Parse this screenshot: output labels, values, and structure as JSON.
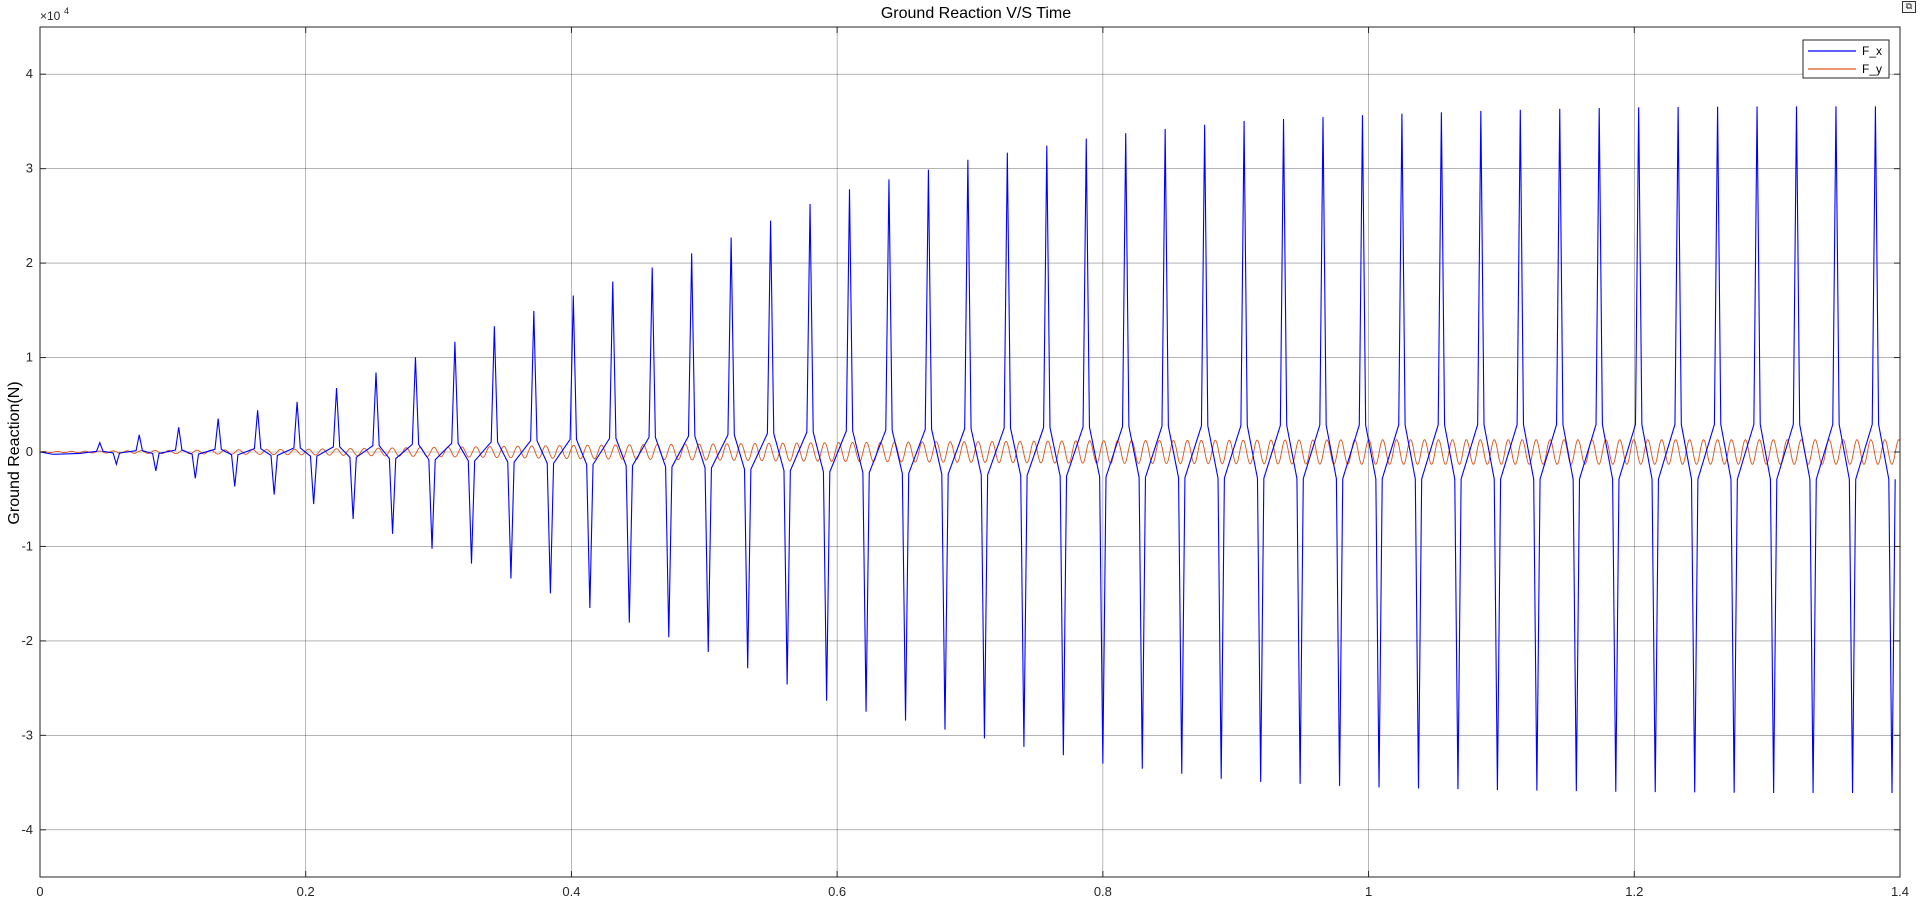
{
  "toolbar": {
    "restore_icon": "restore-icon"
  },
  "chart_data": {
    "type": "line",
    "title": "Ground Reaction V/S Time",
    "xlabel": "",
    "ylabel": "Ground Reaction(N)",
    "y_exponent_label": "×10",
    "y_exponent_power": "4",
    "xlim": [
      0,
      1.4
    ],
    "ylim": [
      -45000,
      45000
    ],
    "grid": true,
    "legend_placement": "top-right",
    "x_ticks": [
      0,
      0.2,
      0.4,
      0.6,
      0.8,
      1.0,
      1.2,
      1.4
    ],
    "x_tick_labels": [
      "0",
      "0.2",
      "0.4",
      "0.6",
      "0.8",
      "1",
      "1.2",
      "1.4"
    ],
    "y_ticks": [
      -40000,
      -30000,
      -20000,
      -10000,
      0,
      10000,
      20000,
      30000,
      40000
    ],
    "y_tick_labels": [
      "-4",
      "-3",
      "-2",
      "-1",
      "0",
      "1",
      "2",
      "3",
      "4"
    ],
    "series": [
      {
        "name": "F_x",
        "color": "#0000ff",
        "description": "oscillating spikes; first positive peak near t=0.045 (~1000 N), period ~0.03 s; amplitude grows and saturates",
        "envelope_t": [
          0.045,
          0.1,
          0.2,
          0.3,
          0.4,
          0.5,
          0.6,
          0.7,
          0.8,
          0.9,
          1.0,
          1.1,
          1.2,
          1.3,
          1.38
        ],
        "envelope_pos": [
          1000,
          2500,
          5500,
          11000,
          16500,
          21500,
          27500,
          31000,
          33500,
          35000,
          35700,
          36200,
          36500,
          36600,
          36600
        ],
        "envelope_neg": [
          -1000,
          -2300,
          -5200,
          -10500,
          -15800,
          -21000,
          -26800,
          -30000,
          -33000,
          -34800,
          -35500,
          -35800,
          -36000,
          -36100,
          -36100
        ]
      },
      {
        "name": "F_y",
        "color": "#d95319",
        "description": "small oscillation about zero",
        "envelope_t": [
          0.0,
          0.2,
          0.4,
          0.6,
          0.8,
          1.0,
          1.2,
          1.4
        ],
        "envelope_amp": [
          50,
          300,
          700,
          1000,
          1200,
          1300,
          1300,
          1300
        ]
      }
    ]
  }
}
